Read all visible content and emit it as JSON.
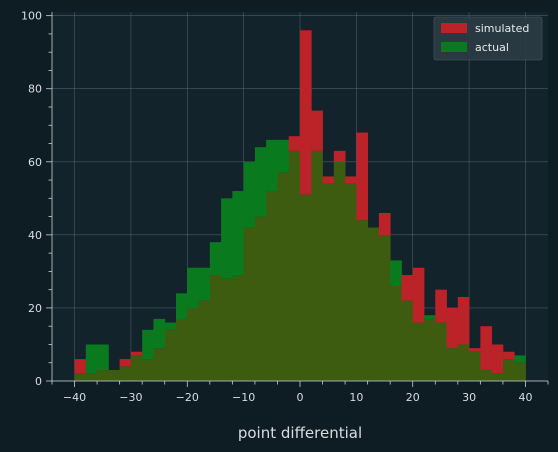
{
  "colors": {
    "page_background": "#0e1c24",
    "plot_background": "#13232c",
    "grid": "#5f7480",
    "simulated": "#bb2329",
    "actual": "#0a7a1e",
    "overlap": "#3d5c10"
  },
  "chart_data": {
    "type": "histogram",
    "title": "",
    "xlabel": "point differential",
    "ylabel": "",
    "xlim": [
      -44,
      44
    ],
    "ylim": [
      0,
      101
    ],
    "x_ticks": [
      -40,
      -30,
      -20,
      -10,
      0,
      10,
      20,
      30,
      40
    ],
    "y_ticks": [
      0,
      20,
      40,
      60,
      80,
      100
    ],
    "grid": true,
    "legend_position": "top-right",
    "bin_width": 2,
    "bin_starts": [
      -40,
      -38,
      -36,
      -34,
      -32,
      -30,
      -28,
      -26,
      -24,
      -22,
      -20,
      -18,
      -16,
      -14,
      -12,
      -10,
      -8,
      -6,
      -4,
      -2,
      0,
      2,
      4,
      6,
      8,
      10,
      12,
      14,
      16,
      18,
      20,
      22,
      24,
      26,
      28,
      30,
      32,
      34,
      36,
      38
    ],
    "series": [
      {
        "name": "simulated",
        "values": [
          6,
          2,
          3,
          3,
          6,
          8,
          6,
          9,
          14,
          17,
          20,
          22,
          29,
          28,
          29,
          42,
          45,
          52,
          57,
          67,
          96,
          74,
          56,
          63,
          56,
          68,
          42,
          46,
          26,
          29,
          31,
          17,
          25,
          20,
          23,
          9,
          15,
          10,
          8,
          5
        ]
      },
      {
        "name": "actual",
        "values": [
          2,
          10,
          10,
          3,
          4,
          7,
          14,
          17,
          16,
          24,
          31,
          31,
          38,
          50,
          52,
          60,
          64,
          66,
          66,
          63,
          51,
          63,
          54,
          60,
          54,
          44,
          42,
          40,
          33,
          22,
          16,
          18,
          16,
          9,
          10,
          8,
          3,
          2,
          6,
          7
        ]
      }
    ]
  }
}
